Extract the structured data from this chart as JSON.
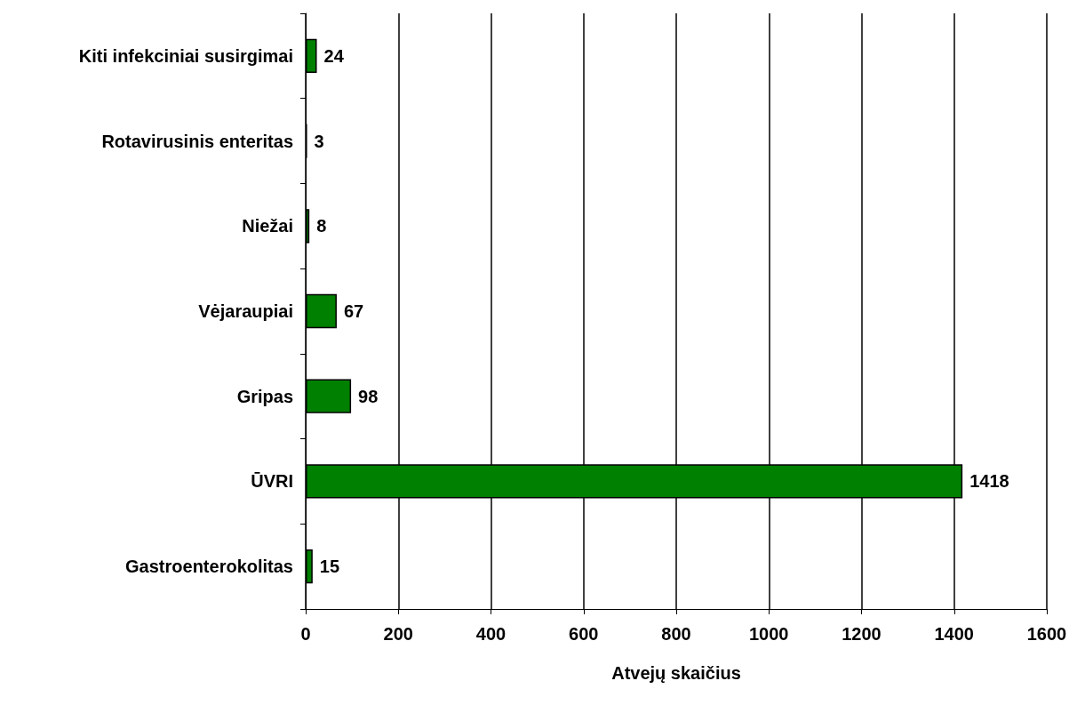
{
  "chart_data": {
    "type": "bar",
    "orientation": "horizontal",
    "xlabel": "Atvejų skaičius",
    "categories": [
      "Kiti infekciniai susirgimai",
      "Rotavirusinis enteritas",
      "Niežai",
      "Vėjaraupiai",
      "Gripas",
      "ŪVRI",
      "Gastroenterokolitas"
    ],
    "values": [
      24,
      3,
      8,
      67,
      98,
      1418,
      15
    ],
    "color": "#008000",
    "xlim": [
      0,
      1600
    ],
    "xticks": [
      0,
      200,
      400,
      600,
      800,
      1000,
      1200,
      1400,
      1600
    ],
    "grid": "x",
    "data_labels": true
  }
}
